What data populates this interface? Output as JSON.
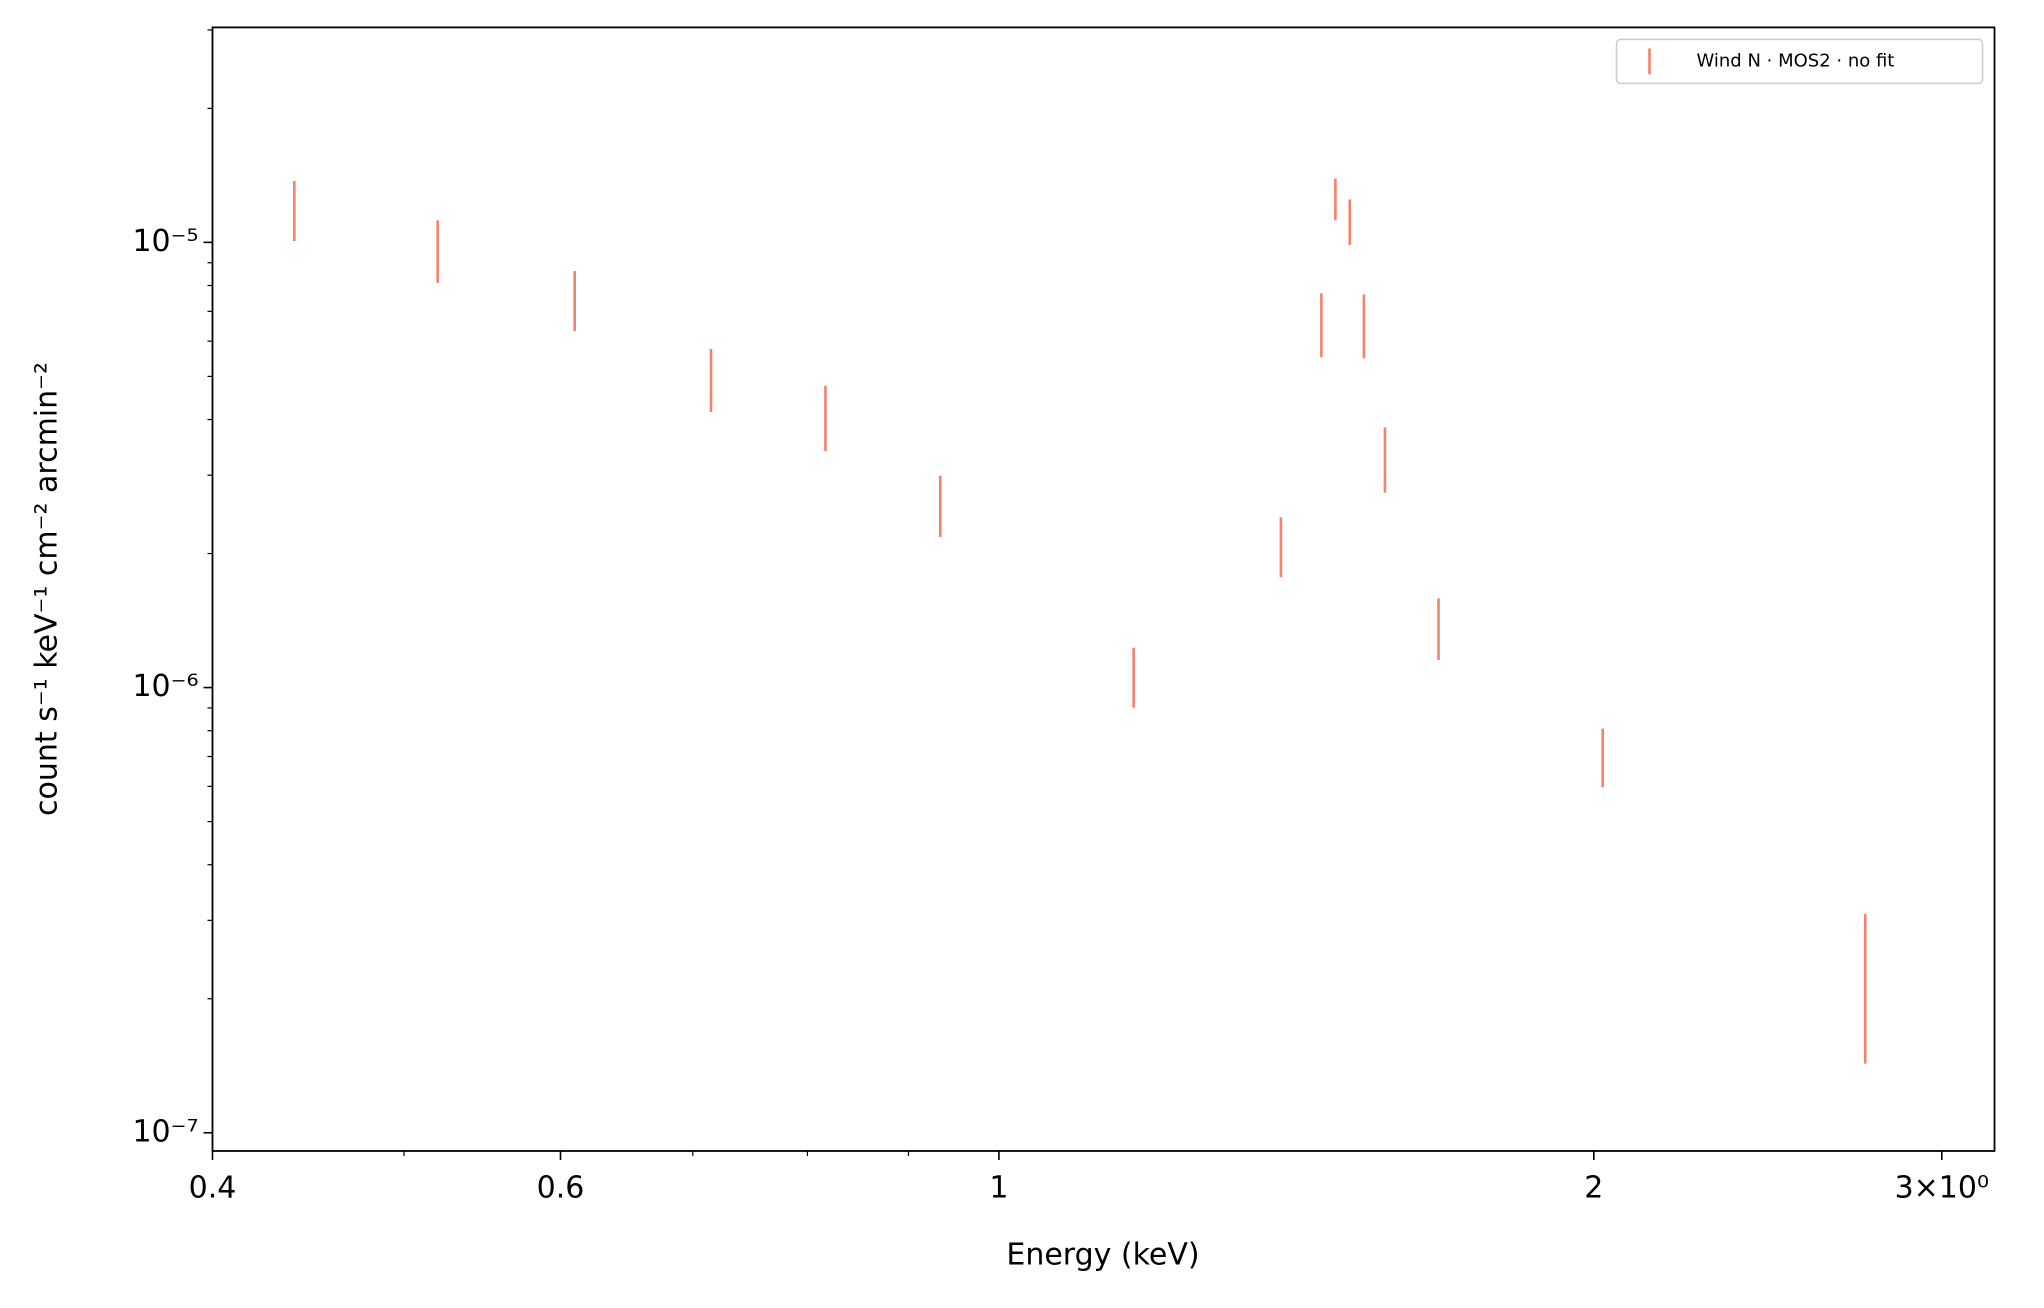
{
  "chart_data": {
    "type": "errorbar",
    "xlabel": "Energy (keV)",
    "ylabel": "count s⁻¹ keV⁻¹ cm⁻² arcmin⁻²",
    "xscale": "log",
    "yscale": "log",
    "xlim": [
      0.4,
      3.19
    ],
    "ylim": [
      9.1e-08,
      3.04e-05
    ],
    "xticks": [
      0.4,
      0.6,
      1,
      2,
      {
        "value": 3,
        "label": "3×10⁰"
      }
    ],
    "xminorticks": [
      0.5,
      0.7,
      0.8,
      0.9
    ],
    "yticks": [
      {
        "value": 1e-07,
        "label": "10⁻⁷"
      },
      {
        "value": 1e-06,
        "label": "10⁻⁶"
      },
      {
        "value": 1e-05,
        "label": "10⁻⁵"
      }
    ],
    "yminorticks": [
      2e-07,
      3e-07,
      4e-07,
      5e-07,
      6e-07,
      7e-07,
      8e-07,
      9e-07,
      2e-06,
      3e-06,
      4e-06,
      5e-06,
      6e-06,
      7e-06,
      8e-06,
      9e-06,
      2e-05,
      3e-05
    ],
    "legend": "upper right",
    "series": [
      {
        "name": "Wind N · MOS2 · no fit",
        "color": "#f4826c",
        "x": [
          0.44,
          0.52,
          0.61,
          0.715,
          0.817,
          0.934,
          1.17,
          1.389,
          1.456,
          1.48,
          1.505,
          1.53,
          1.568,
          1.669,
          2.021,
          2.744
        ],
        "values": [
          1.19e-05,
          9.66e-06,
          7.47e-06,
          4.96e-06,
          4.08e-06,
          2.585e-06,
          1.065e-06,
          2.09e-06,
          6.6e-06,
          1.256e-05,
          1.118e-05,
          6.565e-06,
          3.29e-06,
          1.37e-06,
          7.03e-07,
          2.265e-07
        ],
        "errors": [
          1.83e-06,
          1.55e-06,
          1.15e-06,
          8e-07,
          6.8e-07,
          4.05e-07,
          1.64e-07,
          3.2e-07,
          1.08e-06,
          1.35e-06,
          1.31e-06,
          1.075e-06,
          5.5e-07,
          2.16e-07,
          1.06e-07,
          8.35e-08
        ]
      }
    ]
  }
}
